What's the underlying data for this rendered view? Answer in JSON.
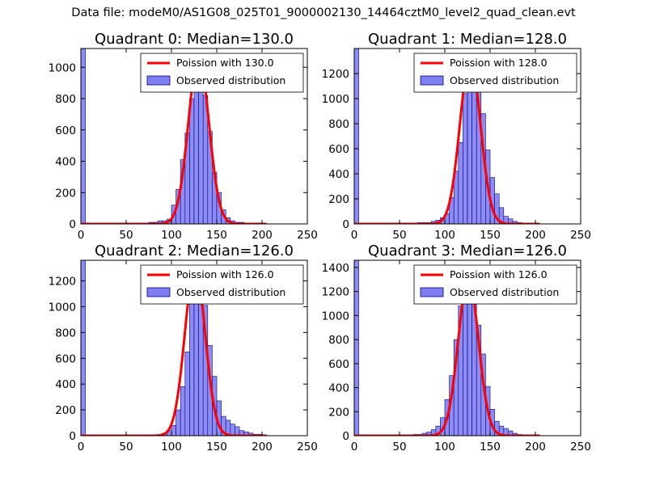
{
  "suptitle": "Data file: modeM0/AS1G08_025T01_9000002130_14464cztM0_level2_quad_clean.evt",
  "colors": {
    "bar_fill": "#7f7ff2",
    "bar_edge": "#00008b",
    "poisson_line": "#ff0000",
    "axes": "#000000"
  },
  "chart_data": [
    {
      "type": "bar",
      "title": "Quadrant 0: Median=130.0",
      "xlabel": "",
      "ylabel": "",
      "xlim": [
        0,
        250
      ],
      "ylim": [
        0,
        1120
      ],
      "xticks": [
        0,
        50,
        100,
        150,
        200,
        250
      ],
      "yticks": [
        0,
        200,
        400,
        600,
        800,
        1000
      ],
      "bin_width": 5,
      "legend": {
        "location": "top-right",
        "entries": [
          "Poission with 130.0",
          "Observed distribution"
        ]
      },
      "poisson_mean": 130.0,
      "poisson_peak": 1065,
      "hist": {
        "x": [
          0,
          75,
          80,
          85,
          90,
          95,
          100,
          105,
          110,
          115,
          120,
          125,
          130,
          135,
          140,
          145,
          150,
          155,
          160,
          165,
          170,
          175,
          180,
          185,
          190,
          195
        ],
        "values": [
          1120,
          10,
          10,
          20,
          20,
          30,
          120,
          220,
          410,
          580,
          800,
          1000,
          1050,
          820,
          590,
          330,
          200,
          90,
          40,
          20,
          10,
          10,
          5,
          5,
          3,
          2
        ]
      }
    },
    {
      "type": "bar",
      "title": "Quadrant 1: Median=128.0",
      "xlabel": "",
      "ylabel": "",
      "xlim": [
        0,
        250
      ],
      "ylim": [
        0,
        1400
      ],
      "xticks": [
        0,
        50,
        100,
        150,
        200,
        250
      ],
      "yticks": [
        0,
        200,
        400,
        600,
        800,
        1000,
        1200
      ],
      "bin_width": 5,
      "legend": {
        "location": "top-right",
        "entries": [
          "Poission with 128.0",
          "Observed distribution"
        ]
      },
      "poisson_mean": 128.0,
      "poisson_peak": 1320,
      "hist": {
        "x": [
          0,
          70,
          75,
          80,
          85,
          90,
          95,
          100,
          105,
          110,
          115,
          120,
          125,
          130,
          135,
          140,
          145,
          150,
          155,
          160,
          165,
          170,
          175,
          180,
          185
        ],
        "values": [
          1400,
          10,
          10,
          10,
          20,
          30,
          50,
          80,
          210,
          420,
          650,
          1040,
          1310,
          1300,
          1100,
          880,
          590,
          370,
          240,
          130,
          60,
          40,
          20,
          10,
          5
        ]
      }
    },
    {
      "type": "bar",
      "title": "Quadrant 2: Median=126.0",
      "xlabel": "",
      "ylabel": "",
      "xlim": [
        0,
        250
      ],
      "ylim": [
        0,
        1360
      ],
      "xticks": [
        0,
        50,
        100,
        150,
        200,
        250
      ],
      "yticks": [
        0,
        200,
        400,
        600,
        800,
        1000,
        1200
      ],
      "bin_width": 5,
      "legend": {
        "location": "top-right",
        "entries": [
          "Poission with 126.0",
          "Observed distribution"
        ]
      },
      "poisson_mean": 126.0,
      "poisson_peak": 1310,
      "hist": {
        "x": [
          0,
          85,
          90,
          95,
          100,
          105,
          110,
          115,
          120,
          125,
          130,
          135,
          140,
          145,
          150,
          155,
          160,
          165,
          170,
          175,
          180,
          185,
          190,
          195,
          200
        ],
        "values": [
          1360,
          10,
          20,
          40,
          80,
          200,
          380,
          650,
          1040,
          1300,
          1290,
          1010,
          700,
          460,
          270,
          150,
          120,
          90,
          70,
          40,
          30,
          20,
          10,
          10,
          5
        ]
      }
    },
    {
      "type": "bar",
      "title": "Quadrant 3: Median=126.0",
      "xlabel": "",
      "ylabel": "",
      "xlim": [
        0,
        250
      ],
      "ylim": [
        0,
        1460
      ],
      "xticks": [
        0,
        50,
        100,
        150,
        200,
        250
      ],
      "yticks": [
        0,
        200,
        400,
        600,
        800,
        1000,
        1200,
        1400
      ],
      "bin_width": 5,
      "legend": {
        "location": "top-right",
        "entries": [
          "Poission with 126.0",
          "Observed distribution"
        ]
      },
      "poisson_mean": 126.0,
      "poisson_peak": 1310,
      "hist": {
        "x": [
          0,
          65,
          70,
          75,
          80,
          85,
          90,
          95,
          100,
          105,
          110,
          115,
          120,
          125,
          130,
          135,
          140,
          145,
          150,
          155,
          160,
          165,
          170,
          175,
          180,
          185,
          190,
          195,
          200,
          205
        ],
        "values": [
          1460,
          10,
          10,
          20,
          30,
          50,
          80,
          150,
          300,
          500,
          800,
          1080,
          1200,
          1250,
          1190,
          920,
          680,
          410,
          220,
          120,
          80,
          60,
          40,
          20,
          10,
          5,
          5,
          3,
          2,
          1
        ]
      }
    }
  ]
}
